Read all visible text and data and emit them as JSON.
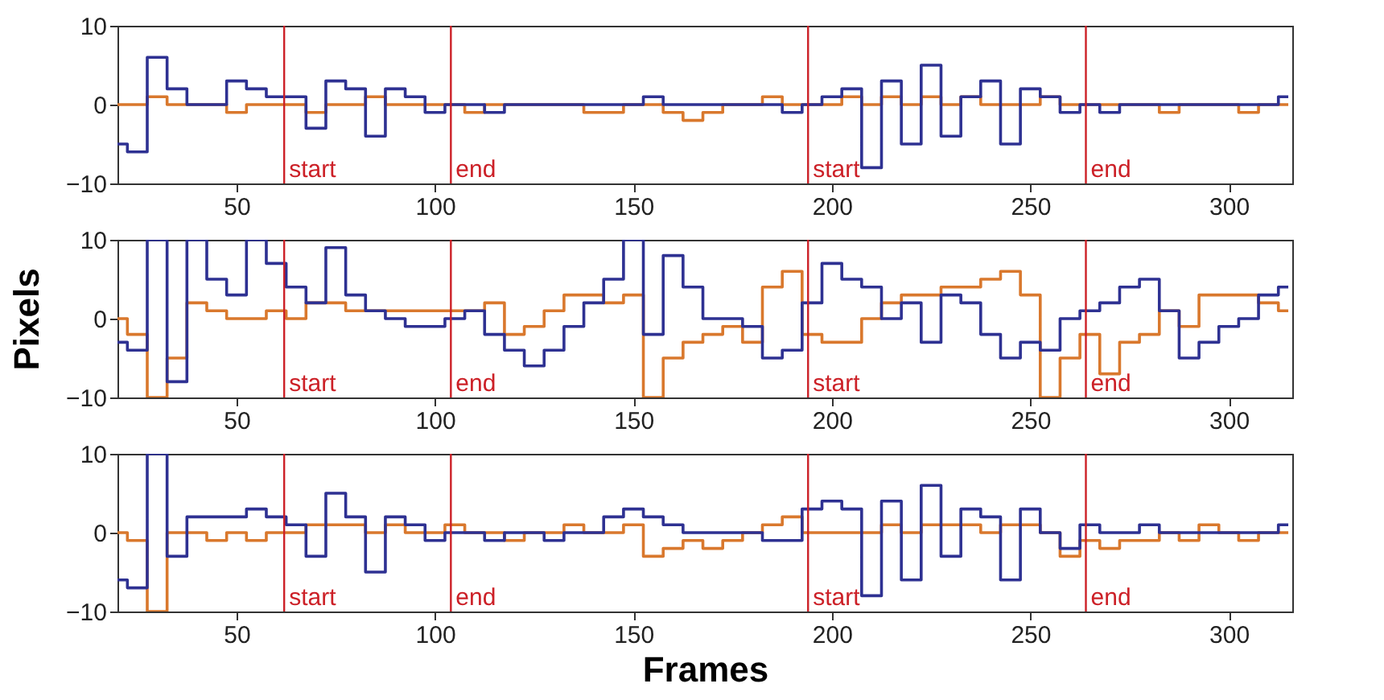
{
  "chart_data": [
    {
      "type": "step",
      "x": [
        20,
        25,
        30,
        35,
        40,
        45,
        50,
        55,
        60,
        65,
        70,
        75,
        80,
        85,
        90,
        95,
        100,
        105,
        110,
        115,
        120,
        125,
        130,
        135,
        140,
        145,
        150,
        155,
        160,
        165,
        170,
        175,
        180,
        185,
        190,
        195,
        200,
        205,
        210,
        215,
        220,
        225,
        230,
        235,
        240,
        245,
        250,
        255,
        260,
        265,
        270,
        275,
        280,
        285,
        290,
        295,
        300,
        305,
        310,
        315
      ],
      "xlim": [
        20,
        316
      ],
      "xticks": [
        50,
        100,
        150,
        200,
        250,
        300
      ],
      "ylim": [
        -10,
        10
      ],
      "yticks": [
        -10,
        0,
        10
      ],
      "grid": false,
      "line_style": "solid",
      "marker": "none",
      "series": [
        {
          "color": "#d9782d",
          "values": [
            0,
            0,
            1,
            0,
            0,
            0,
            -1,
            0,
            0,
            0,
            -1,
            0,
            0,
            1,
            0,
            0,
            0,
            0,
            -1,
            0,
            0,
            0,
            0,
            0,
            -1,
            -1,
            0,
            0,
            -1,
            -2,
            -1,
            0,
            0,
            1,
            0,
            0,
            0,
            1,
            0,
            1,
            0,
            1,
            0,
            1,
            0,
            0,
            0,
            1,
            0,
            0,
            0,
            0,
            0,
            -1,
            0,
            0,
            0,
            -1,
            0,
            0
          ]
        },
        {
          "color": "#2e3192",
          "values": [
            -5,
            -6,
            6,
            2,
            0,
            0,
            3,
            2,
            1,
            1,
            -3,
            3,
            2,
            -4,
            2,
            1,
            -1,
            0,
            0,
            -1,
            0,
            0,
            0,
            0,
            0,
            0,
            0,
            1,
            0,
            0,
            0,
            0,
            0,
            0,
            -1,
            0,
            1,
            2,
            -8,
            3,
            -5,
            5,
            -4,
            1,
            3,
            -5,
            2,
            1,
            -1,
            0,
            -1,
            0,
            0,
            0,
            0,
            0,
            0,
            0,
            0,
            1
          ]
        }
      ],
      "ref_lines": [
        {
          "axis": "x",
          "value": 62,
          "label": "start",
          "color": "#cc2027"
        },
        {
          "axis": "x",
          "value": 104,
          "label": "end",
          "color": "#cc2027"
        },
        {
          "axis": "x",
          "value": 194,
          "label": "start",
          "color": "#cc2027"
        },
        {
          "axis": "x",
          "value": 264,
          "label": "end",
          "color": "#cc2027"
        }
      ]
    },
    {
      "type": "step",
      "ylabel": "Pixels",
      "x": [
        20,
        25,
        30,
        35,
        40,
        45,
        50,
        55,
        60,
        65,
        70,
        75,
        80,
        85,
        90,
        95,
        100,
        105,
        110,
        115,
        120,
        125,
        130,
        135,
        140,
        145,
        150,
        155,
        160,
        165,
        170,
        175,
        180,
        185,
        190,
        195,
        200,
        205,
        210,
        215,
        220,
        225,
        230,
        235,
        240,
        245,
        250,
        255,
        260,
        265,
        270,
        275,
        280,
        285,
        290,
        295,
        300,
        305,
        310,
        315
      ],
      "xlim": [
        20,
        316
      ],
      "xticks": [
        50,
        100,
        150,
        200,
        250,
        300
      ],
      "ylim": [
        -10,
        10
      ],
      "yticks": [
        -10,
        0,
        10
      ],
      "grid": false,
      "line_style": "solid",
      "marker": "none",
      "series": [
        {
          "color": "#d9782d",
          "values": [
            0,
            -2,
            -10,
            -5,
            2,
            1,
            0,
            0,
            1,
            0,
            2,
            2,
            1,
            1,
            1,
            1,
            1,
            1,
            1,
            2,
            -2,
            -1,
            1,
            3,
            3,
            2,
            3,
            -10,
            -5,
            -3,
            -2,
            -1,
            -3,
            4,
            6,
            -2,
            -3,
            -3,
            0,
            2,
            3,
            3,
            4,
            4,
            5,
            6,
            3,
            -10,
            -5,
            -2,
            -7,
            -3,
            -2,
            1,
            -1,
            3,
            3,
            3,
            2,
            1
          ]
        },
        {
          "color": "#2e3192",
          "values": [
            -3,
            -4,
            10,
            -8,
            10,
            5,
            3,
            10,
            7,
            4,
            2,
            9,
            3,
            1,
            0,
            -1,
            -1,
            0,
            1,
            -2,
            -4,
            -6,
            -4,
            -1,
            2,
            5,
            10,
            -2,
            8,
            4,
            0,
            0,
            -1,
            -5,
            -4,
            2,
            7,
            5,
            4,
            0,
            2,
            -3,
            3,
            2,
            -2,
            -5,
            -3,
            -4,
            0,
            1,
            2,
            4,
            5,
            1,
            -5,
            -3,
            -1,
            0,
            3,
            4
          ]
        }
      ],
      "ref_lines": [
        {
          "axis": "x",
          "value": 62,
          "label": "start",
          "color": "#cc2027"
        },
        {
          "axis": "x",
          "value": 104,
          "label": "end",
          "color": "#cc2027"
        },
        {
          "axis": "x",
          "value": 194,
          "label": "start",
          "color": "#cc2027"
        },
        {
          "axis": "x",
          "value": 264,
          "label": "end",
          "color": "#cc2027"
        }
      ]
    },
    {
      "type": "step",
      "xlabel": "Frames",
      "x": [
        20,
        25,
        30,
        35,
        40,
        45,
        50,
        55,
        60,
        65,
        70,
        75,
        80,
        85,
        90,
        95,
        100,
        105,
        110,
        115,
        120,
        125,
        130,
        135,
        140,
        145,
        150,
        155,
        160,
        165,
        170,
        175,
        180,
        185,
        190,
        195,
        200,
        205,
        210,
        215,
        220,
        225,
        230,
        235,
        240,
        245,
        250,
        255,
        260,
        265,
        270,
        275,
        280,
        285,
        290,
        295,
        300,
        305,
        310,
        315
      ],
      "xlim": [
        20,
        316
      ],
      "xticks": [
        50,
        100,
        150,
        200,
        250,
        300
      ],
      "ylim": [
        -10,
        10
      ],
      "yticks": [
        -10,
        0,
        10
      ],
      "grid": false,
      "line_style": "solid",
      "marker": "none",
      "series": [
        {
          "color": "#d9782d",
          "values": [
            0,
            -1,
            -10,
            0,
            0,
            -1,
            0,
            -1,
            0,
            0,
            1,
            1,
            1,
            0,
            1,
            0,
            0,
            1,
            0,
            0,
            -1,
            0,
            0,
            1,
            0,
            0,
            1,
            -3,
            -2,
            -1,
            -2,
            -1,
            0,
            1,
            2,
            0,
            0,
            0,
            0,
            1,
            0,
            1,
            1,
            1,
            0,
            1,
            1,
            0,
            -3,
            -1,
            -2,
            -1,
            -1,
            0,
            -1,
            1,
            0,
            -1,
            0,
            0
          ]
        },
        {
          "color": "#2e3192",
          "values": [
            -6,
            -7,
            10,
            -3,
            2,
            2,
            2,
            3,
            2,
            1,
            -3,
            5,
            2,
            -5,
            2,
            1,
            -1,
            0,
            0,
            -1,
            0,
            0,
            -1,
            0,
            0,
            2,
            3,
            2,
            1,
            0,
            0,
            0,
            0,
            -1,
            -1,
            3,
            4,
            3,
            -8,
            4,
            -6,
            6,
            -3,
            3,
            2,
            -6,
            3,
            0,
            -2,
            1,
            0,
            0,
            1,
            0,
            0,
            0,
            0,
            0,
            0,
            1
          ]
        }
      ],
      "ref_lines": [
        {
          "axis": "x",
          "value": 62,
          "label": "start",
          "color": "#cc2027"
        },
        {
          "axis": "x",
          "value": 104,
          "label": "end",
          "color": "#cc2027"
        },
        {
          "axis": "x",
          "value": 194,
          "label": "start",
          "color": "#cc2027"
        },
        {
          "axis": "x",
          "value": 264,
          "label": "end",
          "color": "#cc2027"
        }
      ]
    }
  ]
}
